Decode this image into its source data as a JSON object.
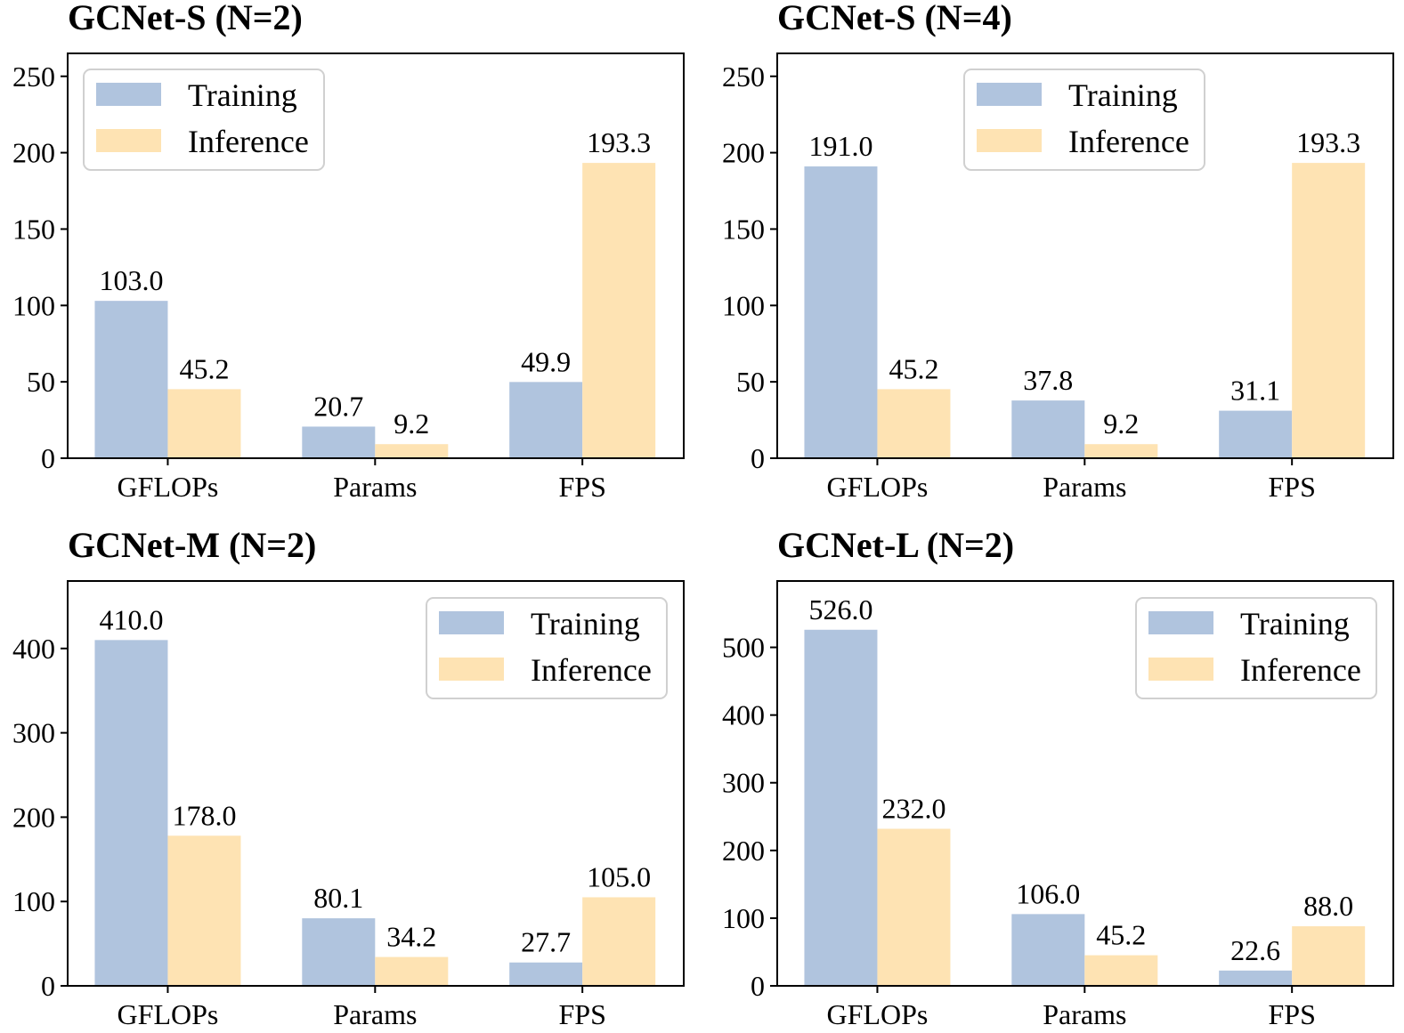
{
  "figure": {
    "colors": {
      "training": "#b0c4de",
      "inference": "#fee3b3",
      "axis": "#000000",
      "legend_border": "#d0d0d0"
    }
  },
  "chart_data": [
    {
      "type": "bar",
      "title": "GCNet-S (N=2)",
      "categories": [
        "GFLOPs",
        "Params",
        "FPS"
      ],
      "series": [
        {
          "name": "Training",
          "values": [
            103.0,
            20.7,
            49.9
          ],
          "labels": [
            "103.0",
            "20.7",
            "49.9"
          ]
        },
        {
          "name": "Inference",
          "values": [
            45.2,
            9.2,
            193.3
          ],
          "labels": [
            "45.2",
            "9.2",
            "193.3"
          ]
        }
      ],
      "ylim": [
        0,
        265
      ],
      "yticks": [
        0,
        50,
        100,
        150,
        200,
        250
      ],
      "legend": "top-left",
      "xlabel": "",
      "ylabel": ""
    },
    {
      "type": "bar",
      "title": "GCNet-S (N=4)",
      "categories": [
        "GFLOPs",
        "Params",
        "FPS"
      ],
      "series": [
        {
          "name": "Training",
          "values": [
            191.0,
            37.8,
            31.1
          ],
          "labels": [
            "191.0",
            "37.8",
            "31.1"
          ]
        },
        {
          "name": "Inference",
          "values": [
            45.2,
            9.2,
            193.3
          ],
          "labels": [
            "45.2",
            "9.2",
            "193.3"
          ]
        }
      ],
      "ylim": [
        0,
        265
      ],
      "yticks": [
        0,
        50,
        100,
        150,
        200,
        250
      ],
      "legend": "top-center",
      "xlabel": "",
      "ylabel": ""
    },
    {
      "type": "bar",
      "title": "GCNet-M (N=2)",
      "categories": [
        "GFLOPs",
        "Params",
        "FPS"
      ],
      "series": [
        {
          "name": "Training",
          "values": [
            410.0,
            80.1,
            27.7
          ],
          "labels": [
            "410.0",
            "80.1",
            "27.7"
          ]
        },
        {
          "name": "Inference",
          "values": [
            178.0,
            34.2,
            105.0
          ],
          "labels": [
            "178.0",
            "34.2",
            "105.0"
          ]
        }
      ],
      "ylim": [
        0,
        480
      ],
      "yticks": [
        0,
        100,
        200,
        300,
        400
      ],
      "legend": "top-right",
      "xlabel": "",
      "ylabel": ""
    },
    {
      "type": "bar",
      "title": "GCNet-L (N=2)",
      "categories": [
        "GFLOPs",
        "Params",
        "FPS"
      ],
      "series": [
        {
          "name": "Training",
          "values": [
            526.0,
            106.0,
            22.6
          ],
          "labels": [
            "526.0",
            "106.0",
            "22.6"
          ]
        },
        {
          "name": "Inference",
          "values": [
            232.0,
            45.2,
            88.0
          ],
          "labels": [
            "232.0",
            "45.2",
            "88.0"
          ]
        }
      ],
      "ylim": [
        0,
        598
      ],
      "yticks": [
        0,
        100,
        200,
        300,
        400,
        500
      ],
      "legend": "top-right",
      "xlabel": "",
      "ylabel": ""
    }
  ]
}
